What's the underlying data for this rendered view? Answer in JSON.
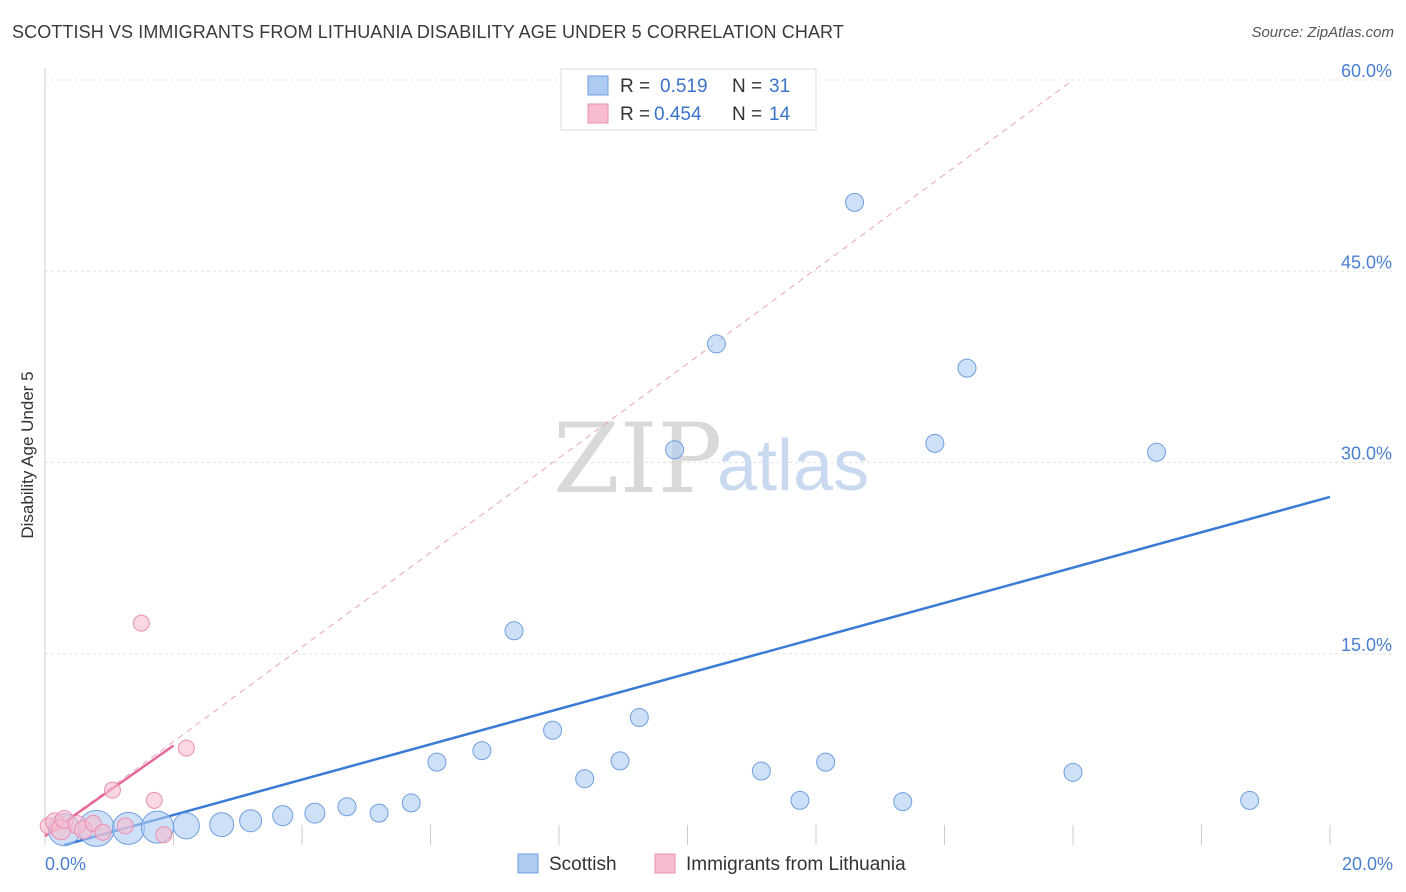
{
  "header": {
    "title": "SCOTTISH VS IMMIGRANTS FROM LITHUANIA DISABILITY AGE UNDER 5 CORRELATION CHART",
    "source": "Source: ZipAtlas.com"
  },
  "watermark": {
    "zip": "ZIP",
    "atlas": "atlas"
  },
  "chart_data": {
    "type": "scatter",
    "title": "SCOTTISH VS IMMIGRANTS FROM LITHUANIA DISABILITY AGE UNDER 5 CORRELATION CHART",
    "xlabel": "",
    "ylabel": "Disability Age Under 5",
    "xlim": [
      0,
      20
    ],
    "ylim": [
      0,
      60
    ],
    "x_tick_labels": [
      "0.0%",
      "20.0%"
    ],
    "y_ticks": [
      15,
      30,
      45,
      60
    ],
    "y_tick_labels": [
      "15.0%",
      "30.0%",
      "45.0%",
      "60.0%"
    ],
    "grid": true,
    "legend": {
      "placement": "top-center",
      "entries": [
        {
          "r_label": "R =",
          "r_value": "0.519",
          "n_label": "N =",
          "n_value": "31"
        },
        {
          "r_label": "R =",
          "r_value": "0.454",
          "n_label": "N =",
          "n_value": "14"
        }
      ]
    },
    "colors": {
      "blue_fill": "#aecbf2",
      "blue_stroke": "#6f9fe0",
      "blue_line": "#3a7bd5",
      "pink_fill": "#f7bcd0",
      "pink_stroke": "#ea8fb0",
      "pink_line": "#e46a98"
    },
    "series": [
      {
        "name": "Scottish",
        "color": "#aecbf2",
        "points": [
          {
            "x": 0.3,
            "y": 1.2,
            "size": 16
          },
          {
            "x": 0.8,
            "y": 1.3,
            "size": 18
          },
          {
            "x": 1.3,
            "y": 1.3,
            "size": 16
          },
          {
            "x": 1.75,
            "y": 1.4,
            "size": 16
          },
          {
            "x": 2.2,
            "y": 1.5,
            "size": 13
          },
          {
            "x": 2.75,
            "y": 1.6,
            "size": 12
          },
          {
            "x": 3.2,
            "y": 1.9,
            "size": 11
          },
          {
            "x": 3.7,
            "y": 2.3,
            "size": 10
          },
          {
            "x": 4.2,
            "y": 2.5,
            "size": 10
          },
          {
            "x": 4.7,
            "y": 3.0,
            "size": 9
          },
          {
            "x": 5.2,
            "y": 2.5,
            "size": 9
          },
          {
            "x": 5.7,
            "y": 3.3,
            "size": 9
          },
          {
            "x": 6.1,
            "y": 6.5,
            "size": 9
          },
          {
            "x": 6.8,
            "y": 7.4,
            "size": 9
          },
          {
            "x": 7.3,
            "y": 16.8,
            "size": 9
          },
          {
            "x": 7.9,
            "y": 9.0,
            "size": 9
          },
          {
            "x": 8.4,
            "y": 5.2,
            "size": 9
          },
          {
            "x": 8.95,
            "y": 6.6,
            "size": 9
          },
          {
            "x": 9.25,
            "y": 10.0,
            "size": 9
          },
          {
            "x": 9.8,
            "y": 31.0,
            "size": 9
          },
          {
            "x": 10.45,
            "y": 39.3,
            "size": 9
          },
          {
            "x": 11.15,
            "y": 5.8,
            "size": 9
          },
          {
            "x": 11.75,
            "y": 3.5,
            "size": 9
          },
          {
            "x": 12.15,
            "y": 6.5,
            "size": 9
          },
          {
            "x": 12.6,
            "y": 50.4,
            "size": 9
          },
          {
            "x": 13.35,
            "y": 3.4,
            "size": 9
          },
          {
            "x": 13.85,
            "y": 31.5,
            "size": 9
          },
          {
            "x": 14.35,
            "y": 37.4,
            "size": 9
          },
          {
            "x": 16.0,
            "y": 5.7,
            "size": 9
          },
          {
            "x": 17.3,
            "y": 30.8,
            "size": 9
          },
          {
            "x": 18.75,
            "y": 3.5,
            "size": 9
          }
        ],
        "trend": {
          "x": [
            0.3,
            20.0
          ],
          "y": [
            0.0,
            27.3
          ]
        }
      },
      {
        "name": "Immigrants from Lithuania",
        "color": "#f7bcd0",
        "points": [
          {
            "x": 0.05,
            "y": 1.5,
            "size": 8
          },
          {
            "x": 0.15,
            "y": 1.8,
            "size": 9
          },
          {
            "x": 0.25,
            "y": 1.2,
            "size": 10
          },
          {
            "x": 0.3,
            "y": 2.0,
            "size": 9
          },
          {
            "x": 0.5,
            "y": 1.6,
            "size": 9
          },
          {
            "x": 0.6,
            "y": 1.2,
            "size": 9
          },
          {
            "x": 0.75,
            "y": 1.7,
            "size": 8
          },
          {
            "x": 0.9,
            "y": 1.0,
            "size": 8
          },
          {
            "x": 1.05,
            "y": 4.3,
            "size": 8
          },
          {
            "x": 1.25,
            "y": 1.5,
            "size": 8
          },
          {
            "x": 1.5,
            "y": 17.4,
            "size": 8
          },
          {
            "x": 1.7,
            "y": 3.5,
            "size": 8
          },
          {
            "x": 1.85,
            "y": 0.8,
            "size": 8
          },
          {
            "x": 2.2,
            "y": 7.6,
            "size": 8
          }
        ],
        "trend": {
          "x": [
            0.0,
            2.0
          ],
          "y": [
            0.7,
            7.8
          ]
        },
        "trend_extended": {
          "x": [
            0.0,
            16.0
          ],
          "y": [
            0.7,
            60.0
          ]
        }
      }
    ]
  }
}
